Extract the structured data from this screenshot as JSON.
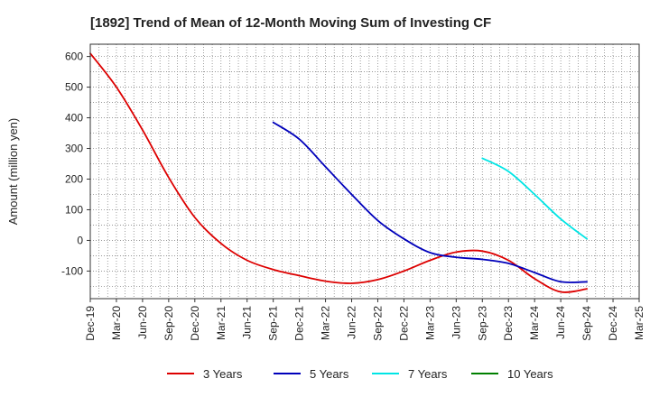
{
  "chart_data": {
    "type": "line",
    "title": "[1892]  Trend of Mean of 12-Month Moving Sum of Investing CF",
    "xlabel": "",
    "ylabel": "Amount (million yen)",
    "ylim": [
      -190,
      640
    ],
    "yticks": [
      600,
      500,
      400,
      300,
      200,
      100,
      0,
      -100
    ],
    "grid": true,
    "legend_position": "bottom",
    "x_ticks": [
      "Dec-19",
      "Mar-20",
      "Jun-20",
      "Sep-20",
      "Dec-20",
      "Mar-21",
      "Jun-21",
      "Sep-21",
      "Dec-21",
      "Mar-22",
      "Jun-22",
      "Sep-22",
      "Dec-22",
      "Mar-23",
      "Jun-23",
      "Sep-23",
      "Dec-23",
      "Mar-24",
      "Jun-24",
      "Sep-24",
      "Dec-24",
      "Mar-25"
    ],
    "series": [
      {
        "name": "3 Years",
        "color": "#dd0000",
        "x": [
          "Dec-19",
          "Mar-20",
          "Jun-20",
          "Sep-20",
          "Dec-20",
          "Mar-21",
          "Jun-21",
          "Sep-21",
          "Dec-21",
          "Mar-22",
          "Jun-22",
          "Sep-22",
          "Dec-22",
          "Mar-23",
          "Jun-23",
          "Sep-23",
          "Dec-23",
          "Mar-24",
          "Jun-24",
          "Sep-24"
        ],
        "values": [
          610,
          500,
          360,
          205,
          75,
          -10,
          -65,
          -95,
          -115,
          -133,
          -140,
          -128,
          -100,
          -65,
          -38,
          -35,
          -65,
          -125,
          -168,
          -158
        ]
      },
      {
        "name": "5 Years",
        "color": "#0000bb",
        "x": [
          "Sep-21",
          "Dec-21",
          "Mar-22",
          "Jun-22",
          "Sep-22",
          "Dec-22",
          "Mar-23",
          "Jun-23",
          "Sep-23",
          "Dec-23",
          "Mar-24",
          "Jun-24",
          "Sep-24"
        ],
        "values": [
          385,
          330,
          240,
          150,
          65,
          5,
          -40,
          -55,
          -62,
          -75,
          -105,
          -135,
          -135
        ]
      },
      {
        "name": "7 Years",
        "color": "#00e5e5",
        "x": [
          "Sep-23",
          "Dec-23",
          "Mar-24",
          "Jun-24",
          "Sep-24"
        ],
        "values": [
          268,
          225,
          150,
          70,
          5
        ]
      },
      {
        "name": "10 Years",
        "color": "#008000",
        "x": [],
        "values": []
      }
    ]
  }
}
